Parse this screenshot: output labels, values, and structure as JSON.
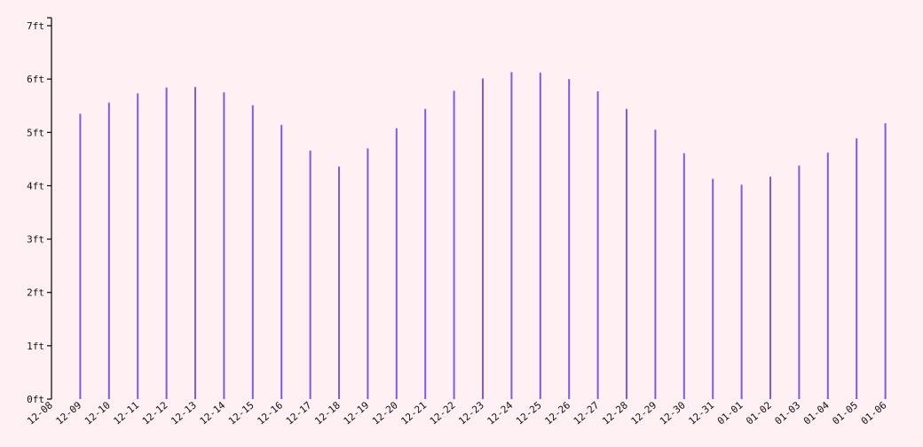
{
  "colors": {
    "background": "#fff0f3",
    "bar": "#7b5ce6",
    "axis": "#000000"
  },
  "chart_data": {
    "type": "bar",
    "title": "",
    "xlabel": "",
    "ylabel": "",
    "ylim": [
      0,
      7
    ],
    "y_unit": "ft",
    "y_ticks": [
      0,
      1,
      2,
      3,
      4,
      5,
      6,
      7
    ],
    "y_tick_labels": [
      "0ft",
      "1ft",
      "2ft",
      "3ft",
      "4ft",
      "5ft",
      "6ft",
      "7ft"
    ],
    "grid": false,
    "legend": "none",
    "categories": [
      "12-08",
      "12-09",
      "12-10",
      "12-11",
      "12-12",
      "12-13",
      "12-14",
      "12-15",
      "12-16",
      "12-17",
      "12-18",
      "12-19",
      "12-20",
      "12-21",
      "12-22",
      "12-23",
      "12-24",
      "12-25",
      "12-26",
      "12-27",
      "12-28",
      "12-29",
      "12-30",
      "12-31",
      "01-01",
      "01-02",
      "01-03",
      "01-04",
      "01-05",
      "01-06"
    ],
    "values": [
      0,
      5.35,
      5.56,
      5.73,
      5.84,
      5.85,
      5.75,
      5.51,
      5.14,
      4.66,
      4.36,
      4.7,
      5.08,
      5.44,
      5.78,
      6.01,
      6.13,
      6.12,
      6.0,
      5.77,
      5.44,
      5.05,
      4.61,
      4.13,
      4.02,
      4.17,
      4.38,
      4.62,
      4.89,
      5.17
    ]
  }
}
